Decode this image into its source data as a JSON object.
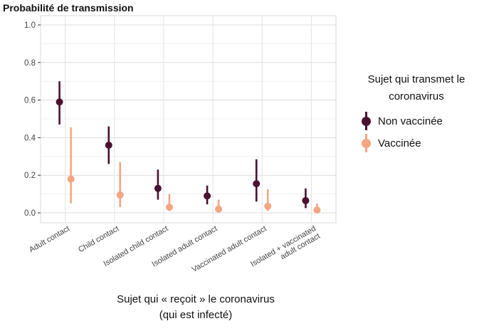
{
  "chart_data": {
    "type": "scatter",
    "title": "Probabilité de transmission",
    "categories": [
      "Adult contact",
      "Child contact",
      "Isolated child contact",
      "Isolated adult contact",
      "Vaccinated adult contact",
      "Isolated + vaccinated adult contact"
    ],
    "series": [
      {
        "name": "Non vaccinée",
        "color": "#4a1230",
        "values": [
          0.59,
          0.36,
          0.13,
          0.09,
          0.155,
          0.065
        ],
        "lower": [
          0.47,
          0.26,
          0.07,
          0.045,
          0.06,
          0.025
        ],
        "upper": [
          0.7,
          0.46,
          0.23,
          0.145,
          0.285,
          0.13
        ]
      },
      {
        "name": "Vaccinée",
        "color": "#f4a582",
        "values": [
          0.18,
          0.095,
          0.03,
          0.02,
          0.035,
          0.015
        ],
        "lower": [
          0.05,
          0.03,
          0.01,
          0.005,
          0.01,
          0.003
        ],
        "upper": [
          0.455,
          0.27,
          0.1,
          0.07,
          0.125,
          0.05
        ]
      }
    ],
    "yticks": [
      "0.0",
      "0.2",
      "0.4",
      "0.6",
      "0.8",
      "1.0"
    ],
    "ylim": [
      -0.05,
      1.05
    ],
    "xlabel": "Sujet qui « reçoit » le coronavirus",
    "xlabel_line2": "(qui est infecté)",
    "legend_title": "Sujet qui transmet le coronavirus",
    "legend_position": "right"
  }
}
